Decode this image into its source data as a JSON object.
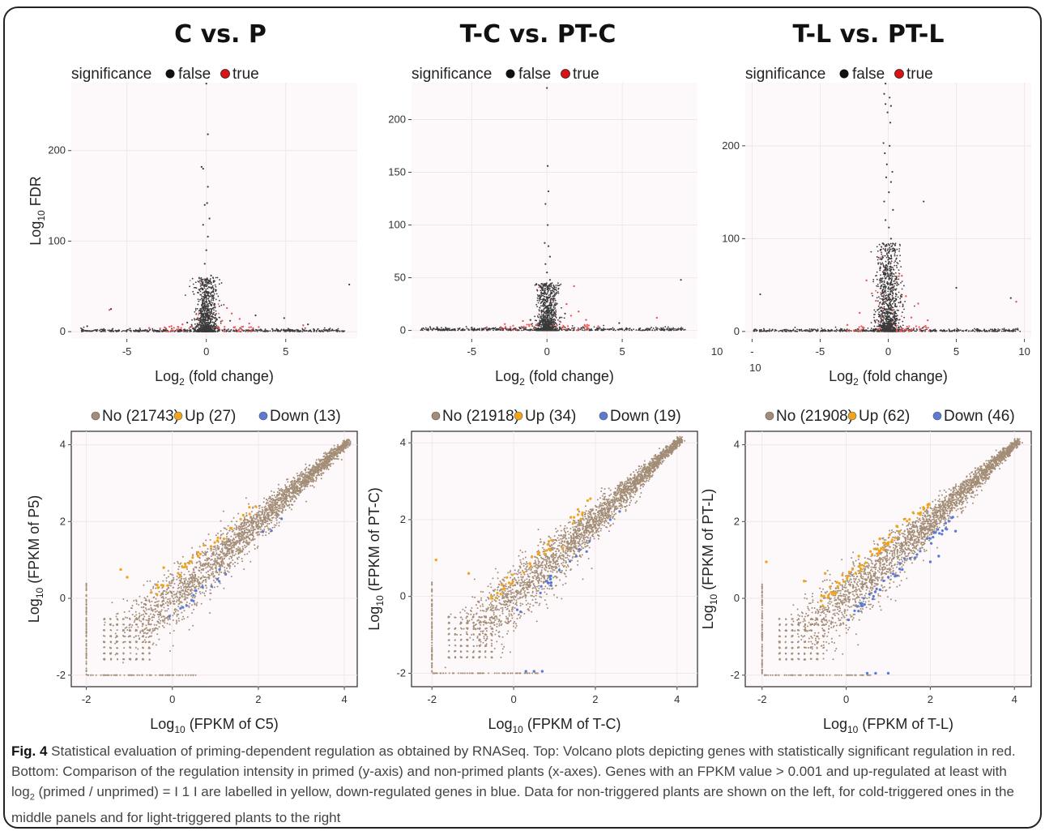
{
  "caption": {
    "lead": "Fig. 4",
    "text": "Statistical evaluation of priming-dependent regulation as obtained by RNASeq. Top: Volcano plots depicting genes with statistically significant regulation in red. Bottom: Comparison of the regulation intensity in primed (y-axis) and non-primed plants (x-axes). Genes with an FPKM value > 0.001 and up-regulated at least with log",
    "text_sub": "2",
    "text_end": " (primed / unprimed) = I 1 I are labelled in yellow, down-regulated genes in blue. Data for non-triggered plants are shown on the left, for cold-triggered ones in the middle panels and for light-triggered plants to the right"
  },
  "colors": {
    "false": "#3a3a3a",
    "true": "#ee5555",
    "no": "#a38d76",
    "up": "#f0a51a",
    "down": "#5a7ad6"
  },
  "chart_data": [
    {
      "type": "scatter",
      "kind": "volcano",
      "title": "C vs. P",
      "xlabel": {
        "main": "Log",
        "sub": "2",
        "rest": " (fold change)"
      },
      "ylabel": {
        "main": "Log",
        "sub": "10",
        "rest": " FDR"
      },
      "legend": {
        "title": "significance",
        "entries": [
          "false",
          "true"
        ]
      },
      "xlim": [
        -8.5,
        9.5
      ],
      "ylim": [
        -8,
        275
      ],
      "xticks": [
        "-5",
        "0",
        "5"
      ],
      "xtick_values": [
        -5,
        0,
        5
      ],
      "yticks": [
        "0",
        "100",
        "200"
      ],
      "ytick_values": [
        0,
        100,
        200
      ],
      "extra_xticks": [],
      "series": {
        "false": [
          [
            0,
            274
          ],
          [
            0.1,
            218
          ],
          [
            -0.3,
            182
          ],
          [
            -0.2,
            180
          ],
          [
            0.1,
            160
          ],
          [
            0.05,
            142
          ],
          [
            -0.1,
            140
          ],
          [
            0.2,
            125
          ],
          [
            -0.2,
            118
          ],
          [
            0.1,
            105
          ],
          [
            0,
            90
          ],
          [
            -0.1,
            75
          ],
          [
            0.3,
            62
          ],
          [
            0.25,
            55
          ],
          [
            -0.3,
            48
          ],
          [
            0.1,
            42
          ],
          [
            -0.15,
            38
          ],
          [
            0.2,
            33
          ],
          [
            -0.05,
            28
          ],
          [
            0.15,
            24
          ],
          [
            -0.25,
            20
          ],
          [
            0.35,
            17
          ],
          [
            -6.0,
            25
          ],
          [
            3.1,
            18
          ],
          [
            4.9,
            15
          ],
          [
            9.0,
            52
          ],
          [
            -7.5,
            6
          ],
          [
            6.4,
            8
          ],
          [
            1.5,
            12
          ],
          [
            -1.2,
            10
          ]
        ],
        "true": [
          [
            -6.1,
            24
          ],
          [
            1.6,
            20
          ],
          [
            1.3,
            26
          ],
          [
            2.1,
            14
          ],
          [
            2.7,
            9
          ],
          [
            -1.5,
            8
          ],
          [
            1.0,
            12
          ],
          [
            -2.2,
            6
          ],
          [
            3.3,
            5
          ],
          [
            6.1,
            7
          ],
          [
            -3.6,
            4
          ],
          [
            1.8,
            5
          ]
        ]
      },
      "cluster": {
        "sd_x": 0.35,
        "height": 60,
        "n": 900,
        "red_fraction": 0.03
      }
    },
    {
      "type": "scatter",
      "kind": "volcano",
      "title": "T-C vs. PT-C",
      "xlabel": {
        "main": "Log",
        "sub": "2",
        "rest": " (fold change)"
      },
      "ylabel": {
        "main": "",
        "sub": "",
        "rest": ""
      },
      "legend": {
        "title": "significance",
        "entries": [
          "false",
          "true"
        ]
      },
      "xlim": [
        -9,
        10
      ],
      "ylim": [
        -8,
        235
      ],
      "xticks": [
        "-5",
        "0",
        "5"
      ],
      "xtick_values": [
        -5,
        0,
        5
      ],
      "yticks": [
        "0",
        "50",
        "100",
        "150",
        "200"
      ],
      "ytick_values": [
        0,
        50,
        100,
        150,
        200
      ],
      "extra_xticks": [
        {
          "label": "10",
          "value": 11.3,
          "row": 0
        }
      ],
      "series": {
        "false": [
          [
            0,
            230
          ],
          [
            0.05,
            156
          ],
          [
            0.1,
            132
          ],
          [
            -0.1,
            120
          ],
          [
            0.05,
            100
          ],
          [
            -0.15,
            83
          ],
          [
            0.1,
            80
          ],
          [
            0.2,
            70
          ],
          [
            -0.1,
            63
          ],
          [
            0,
            55
          ],
          [
            0.2,
            48
          ],
          [
            -0.2,
            44
          ],
          [
            0.1,
            40
          ],
          [
            -0.3,
            35
          ],
          [
            0.3,
            30
          ],
          [
            8.9,
            48
          ],
          [
            -7.3,
            3
          ],
          [
            4.8,
            7
          ],
          [
            1.2,
            16
          ],
          [
            -1.1,
            10
          ]
        ],
        "true": [
          [
            1.8,
            42
          ],
          [
            1.3,
            25
          ],
          [
            2.1,
            18
          ],
          [
            2.6,
            10
          ],
          [
            1.6,
            14
          ],
          [
            7.3,
            12
          ],
          [
            -2.8,
            6
          ],
          [
            -1.6,
            9
          ],
          [
            0.9,
            8
          ],
          [
            3.4,
            4
          ],
          [
            -4.0,
            3
          ]
        ]
      },
      "cluster": {
        "sd_x": 0.35,
        "height": 45,
        "n": 900,
        "red_fraction": 0.03
      }
    },
    {
      "type": "scatter",
      "kind": "volcano",
      "title": "T-L vs. PT-L",
      "xlabel": {
        "main": "Log",
        "sub": "2",
        "rest": " (fold change)"
      },
      "ylabel": {
        "main": "",
        "sub": "",
        "rest": ""
      },
      "legend": {
        "title": "significance",
        "entries": [
          "false",
          "true"
        ]
      },
      "xlim": [
        -10.5,
        10.5
      ],
      "ylim": [
        -8,
        268
      ],
      "xticks": [
        "-",
        "-5",
        "0",
        "5",
        "10"
      ],
      "xtick_values": [
        -10,
        -5,
        0,
        5,
        10
      ],
      "yticks": [
        "0",
        "100",
        "200"
      ],
      "ytick_values": [
        0,
        100,
        200
      ],
      "extra_xticks": [
        {
          "label": "10",
          "value": -10,
          "row": 1
        }
      ],
      "series": {
        "false": [
          [
            -0.2,
            267
          ],
          [
            -0.3,
            256
          ],
          [
            0.1,
            252
          ],
          [
            -0.2,
            245
          ],
          [
            0.2,
            243
          ],
          [
            -0.05,
            236
          ],
          [
            0.15,
            225
          ],
          [
            -0.35,
            203
          ],
          [
            0.1,
            200
          ],
          [
            -0.25,
            192
          ],
          [
            -0.1,
            180
          ],
          [
            0.3,
            172
          ],
          [
            -0.15,
            166
          ],
          [
            0.2,
            161
          ],
          [
            0.05,
            150
          ],
          [
            -0.3,
            140
          ],
          [
            0.35,
            131
          ],
          [
            -0.2,
            120
          ],
          [
            0.05,
            112
          ],
          [
            0.2,
            100
          ],
          [
            -9.4,
            40
          ],
          [
            9.0,
            36
          ],
          [
            -8.5,
            2
          ],
          [
            5.0,
            47
          ],
          [
            2.6,
            140
          ],
          [
            -0.4,
            95
          ],
          [
            0.45,
            88
          ]
        ],
        "true": [
          [
            9.4,
            32
          ],
          [
            -1.6,
            55
          ],
          [
            -1.2,
            41
          ],
          [
            1.3,
            38
          ],
          [
            2.2,
            30
          ],
          [
            1.0,
            60
          ],
          [
            -2.1,
            20
          ],
          [
            2.9,
            12
          ],
          [
            -3.0,
            7
          ],
          [
            -0.9,
            33
          ],
          [
            1.7,
            15
          ]
        ]
      },
      "cluster": {
        "sd_x": 0.45,
        "height": 95,
        "n": 1100,
        "red_fraction": 0.08
      }
    },
    {
      "type": "scatter",
      "kind": "fpkm",
      "xlabel": {
        "main": "Log",
        "sub": "10",
        "rest": " (FPKM of C5)"
      },
      "ylabel": {
        "main": "Log",
        "sub": "10",
        "rest": " (FPKM of P5)"
      },
      "legend": {
        "entries": [
          "No (21743)",
          "Up (27)",
          "Down (13)"
        ]
      },
      "xlim": [
        -2.35,
        4.3
      ],
      "ylim": [
        -2.3,
        4.35
      ],
      "xticks": [
        "-2",
        "0",
        "2",
        "4"
      ],
      "xtick_values": [
        -2,
        0,
        2,
        4
      ],
      "yticks": [
        "-2",
        "0",
        "2",
        "4"
      ],
      "ytick_values": [
        -2,
        0,
        2,
        4
      ],
      "up_n": 27,
      "down_n": 13,
      "up_points": [
        [
          1.05,
          1.5
        ],
        [
          1.2,
          1.55
        ],
        [
          0.9,
          1.35
        ],
        [
          -1.2,
          0.75
        ],
        [
          -1.05,
          0.55
        ],
        [
          0.6,
          1.1
        ],
        [
          0.3,
          0.9
        ],
        [
          -0.2,
          0.8
        ]
      ],
      "down_points": [
        [
          1.1,
          0.75
        ],
        [
          0.55,
          0.2
        ],
        [
          0.7,
          0.3
        ],
        [
          0.45,
          -0.05
        ]
      ]
    },
    {
      "type": "scatter",
      "kind": "fpkm",
      "xlabel": {
        "main": "Log",
        "sub": "10",
        "rest": " (FPKM of T-C)"
      },
      "ylabel": {
        "main": "Log",
        "sub": "10",
        "rest": " (FPKM of PT-C)"
      },
      "legend": {
        "entries": [
          "No (21918)",
          "Up (34)",
          "Down (19)"
        ]
      },
      "xlim": [
        -2.5,
        4.5
      ],
      "ylim": [
        -2.35,
        4.3
      ],
      "xticks": [
        "-2",
        "0",
        "2",
        "4"
      ],
      "xtick_values": [
        -2,
        0,
        2,
        4
      ],
      "yticks": [
        "-2",
        "0",
        "2",
        "4"
      ],
      "ytick_values": [
        -2,
        0,
        2,
        4
      ],
      "up_n": 34,
      "down_n": 19,
      "up_points": [
        [
          -1.1,
          0.6
        ],
        [
          -1.9,
          0.95
        ],
        [
          0.6,
          1.1
        ],
        [
          0.9,
          1.2
        ],
        [
          1.2,
          1.25
        ],
        [
          0.4,
          0.85
        ]
      ],
      "down_points": [
        [
          0.7,
          -1.95
        ],
        [
          0.5,
          -1.95
        ],
        [
          0.3,
          -1.95
        ],
        [
          0.8,
          0.4
        ],
        [
          0.9,
          0.45
        ]
      ]
    },
    {
      "type": "scatter",
      "kind": "fpkm",
      "xlabel": {
        "main": "Log",
        "sub": "10",
        "rest": " (FPKM of T-L)"
      },
      "ylabel": {
        "main": "Log",
        "sub": "10",
        "rest": " (FPKM of PT-L)"
      },
      "legend": {
        "entries": [
          "No (21908)",
          "Up (62)",
          "Down (46)"
        ]
      },
      "xlim": [
        -2.4,
        4.4
      ],
      "ylim": [
        -2.3,
        4.35
      ],
      "xticks": [
        "-2",
        "0",
        "2",
        "4"
      ],
      "xtick_values": [
        -2,
        0,
        2,
        4
      ],
      "yticks": [
        "-2",
        "0",
        "2",
        "4"
      ],
      "ytick_values": [
        -2,
        0,
        2,
        4
      ],
      "up_n": 62,
      "down_n": 46,
      "up_points": [
        [
          0.8,
          1.55
        ],
        [
          1.0,
          1.45
        ],
        [
          0.3,
          1.1
        ],
        [
          -0.5,
          0.65
        ],
        [
          -1.0,
          0.45
        ],
        [
          -1.9,
          0.95
        ]
      ],
      "down_points": [
        [
          0.5,
          -1.95
        ],
        [
          0.7,
          -1.95
        ],
        [
          1.0,
          -1.95
        ],
        [
          2.0,
          0.95
        ],
        [
          2.6,
          1.75
        ],
        [
          2.2,
          1.1
        ]
      ]
    }
  ]
}
